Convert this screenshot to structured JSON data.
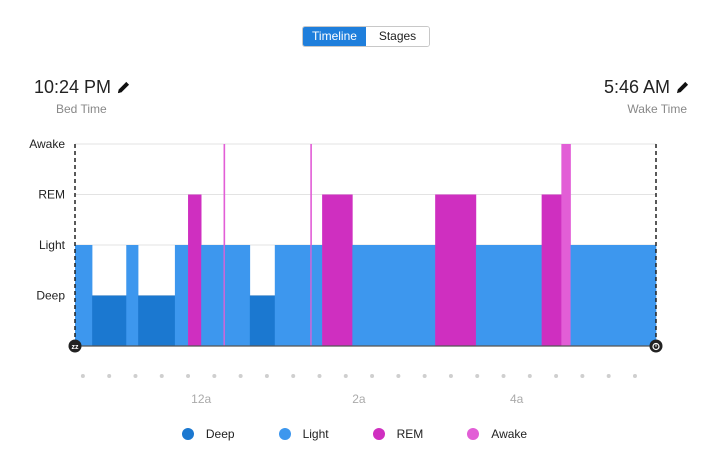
{
  "view_toggle": {
    "options": [
      "Timeline",
      "Stages"
    ],
    "selected": "Timeline"
  },
  "bed_time": {
    "value": "10:24 PM",
    "label": "Bed Time",
    "icon": "pencil-icon"
  },
  "wake_time": {
    "value": "5:46 AM",
    "label": "Wake Time",
    "icon": "pencil-icon"
  },
  "colors": {
    "Deep": "#1b78d0",
    "Light": "#3d97ee",
    "REM": "#cf2fc0",
    "Awake": "#e25ed6",
    "accent": "#1f7fdc"
  },
  "chart_data": {
    "type": "timeline",
    "x_unit": "minutes after 10:00 PM",
    "xlim": [
      24,
      466
    ],
    "y_levels": [
      "Deep",
      "Light",
      "REM",
      "Awake"
    ],
    "x_ticks": [
      {
        "label": "12a",
        "t": 120
      },
      {
        "label": "2a",
        "t": 240
      },
      {
        "label": "4a",
        "t": 360
      }
    ],
    "segments": [
      {
        "stage": "Light",
        "start": 24,
        "end": 37
      },
      {
        "stage": "Deep",
        "start": 37,
        "end": 63
      },
      {
        "stage": "Light",
        "start": 63,
        "end": 72
      },
      {
        "stage": "Deep",
        "start": 72,
        "end": 100
      },
      {
        "stage": "Light",
        "start": 100,
        "end": 110
      },
      {
        "stage": "REM",
        "start": 110,
        "end": 120
      },
      {
        "stage": "Light",
        "start": 120,
        "end": 137
      },
      {
        "stage": "Awake",
        "start": 137,
        "end": 138
      },
      {
        "stage": "Light",
        "start": 138,
        "end": 157
      },
      {
        "stage": "Deep",
        "start": 157,
        "end": 176
      },
      {
        "stage": "Light",
        "start": 176,
        "end": 203
      },
      {
        "stage": "Awake",
        "start": 203,
        "end": 204
      },
      {
        "stage": "Light",
        "start": 204,
        "end": 212
      },
      {
        "stage": "REM",
        "start": 212,
        "end": 235
      },
      {
        "stage": "Light",
        "start": 235,
        "end": 298
      },
      {
        "stage": "REM",
        "start": 298,
        "end": 329
      },
      {
        "stage": "Light",
        "start": 329,
        "end": 379
      },
      {
        "stage": "REM",
        "start": 379,
        "end": 394
      },
      {
        "stage": "Awake",
        "start": 394,
        "end": 401
      },
      {
        "stage": "Light",
        "start": 401,
        "end": 466
      }
    ],
    "start_icon": "sleep-zz-icon",
    "end_icon": "alarm-clock-icon"
  },
  "legend": [
    {
      "label": "Deep",
      "color": "#1b78d0"
    },
    {
      "label": "Light",
      "color": "#3d97ee"
    },
    {
      "label": "REM",
      "color": "#cf2fc0"
    },
    {
      "label": "Awake",
      "color": "#e25ed6"
    }
  ]
}
